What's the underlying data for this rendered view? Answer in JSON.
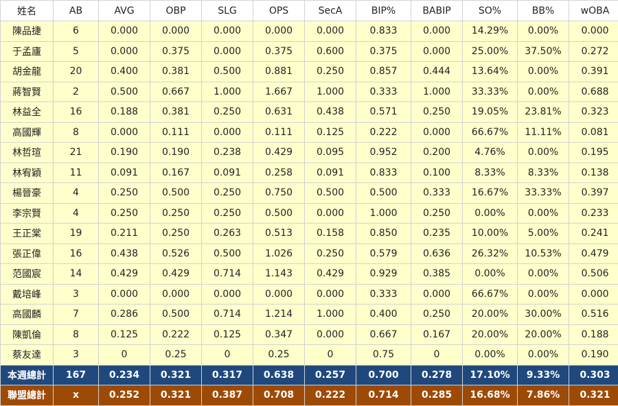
{
  "table": {
    "headers": [
      "姓名",
      "AB",
      "AVG",
      "OBP",
      "SLG",
      "OPS",
      "SecA",
      "BIP%",
      "BABIP",
      "SO%",
      "BB%",
      "wOBA"
    ],
    "rows": [
      [
        "陳品捷",
        "6",
        "0.000",
        "0.000",
        "0.000",
        "0.000",
        "0.000",
        "0.833",
        "0.000",
        "14.29%",
        "0.00%",
        "0.000"
      ],
      [
        "于孟廬",
        "5",
        "0.000",
        "0.375",
        "0.000",
        "0.375",
        "0.600",
        "0.375",
        "0.000",
        "25.00%",
        "37.50%",
        "0.272"
      ],
      [
        "胡金龍",
        "20",
        "0.400",
        "0.381",
        "0.500",
        "0.881",
        "0.250",
        "0.857",
        "0.444",
        "13.64%",
        "0.00%",
        "0.391"
      ],
      [
        "蔣智賢",
        "2",
        "0.500",
        "0.667",
        "1.000",
        "1.667",
        "1.000",
        "0.333",
        "1.000",
        "33.33%",
        "0.00%",
        "0.688"
      ],
      [
        "林益全",
        "16",
        "0.188",
        "0.381",
        "0.250",
        "0.631",
        "0.438",
        "0.571",
        "0.250",
        "19.05%",
        "23.81%",
        "0.323"
      ],
      [
        "高國輝",
        "8",
        "0.000",
        "0.111",
        "0.000",
        "0.111",
        "0.125",
        "0.222",
        "0.000",
        "66.67%",
        "11.11%",
        "0.081"
      ],
      [
        "林哲瑄",
        "21",
        "0.190",
        "0.190",
        "0.238",
        "0.429",
        "0.095",
        "0.952",
        "0.200",
        "4.76%",
        "0.00%",
        "0.195"
      ],
      [
        "林宥穎",
        "11",
        "0.091",
        "0.167",
        "0.091",
        "0.258",
        "0.091",
        "0.833",
        "0.100",
        "8.33%",
        "8.33%",
        "0.138"
      ],
      [
        "楊晉豪",
        "4",
        "0.250",
        "0.500",
        "0.250",
        "0.750",
        "0.500",
        "0.500",
        "0.333",
        "16.67%",
        "33.33%",
        "0.397"
      ],
      [
        "李宗賢",
        "4",
        "0.250",
        "0.250",
        "0.250",
        "0.500",
        "0.000",
        "1.000",
        "0.250",
        "0.00%",
        "0.00%",
        "0.233"
      ],
      [
        "王正棠",
        "19",
        "0.211",
        "0.250",
        "0.263",
        "0.513",
        "0.158",
        "0.850",
        "0.235",
        "10.00%",
        "5.00%",
        "0.241"
      ],
      [
        "張正偉",
        "16",
        "0.438",
        "0.526",
        "0.500",
        "1.026",
        "0.250",
        "0.579",
        "0.636",
        "26.32%",
        "10.53%",
        "0.479"
      ],
      [
        "范國宸",
        "14",
        "0.429",
        "0.429",
        "0.714",
        "1.143",
        "0.429",
        "0.929",
        "0.385",
        "0.00%",
        "0.00%",
        "0.506"
      ],
      [
        "戴培峰",
        "3",
        "0.000",
        "0.000",
        "0.000",
        "0.000",
        "0.000",
        "0.333",
        "0.000",
        "66.67%",
        "0.00%",
        "0.000"
      ],
      [
        "高國麟",
        "7",
        "0.286",
        "0.500",
        "0.714",
        "1.214",
        "1.000",
        "0.400",
        "0.250",
        "20.00%",
        "30.00%",
        "0.516"
      ],
      [
        "陳凱倫",
        "8",
        "0.125",
        "0.222",
        "0.125",
        "0.347",
        "0.000",
        "0.667",
        "0.167",
        "20.00%",
        "20.00%",
        "0.188"
      ],
      [
        "蔡友達",
        "3",
        "0",
        "0.25",
        "0",
        "0.25",
        "0",
        "0.75",
        "0",
        "0.00%",
        "0.00%",
        "0.190"
      ]
    ],
    "total_week": [
      "本週總計",
      "167",
      "0.234",
      "0.321",
      "0.317",
      "0.638",
      "0.257",
      "0.700",
      "0.278",
      "17.10%",
      "9.33%",
      "0.303"
    ],
    "total_league": [
      "聯盟總計",
      "x",
      "0.252",
      "0.321",
      "0.387",
      "0.708",
      "0.222",
      "0.714",
      "0.285",
      "16.68%",
      "7.86%",
      "0.321"
    ]
  },
  "colors": {
    "row_background": "#ffffcc",
    "week_total_background": "#1f497d",
    "league_total_background": "#9c4a06",
    "border": "#d2d2d2"
  }
}
